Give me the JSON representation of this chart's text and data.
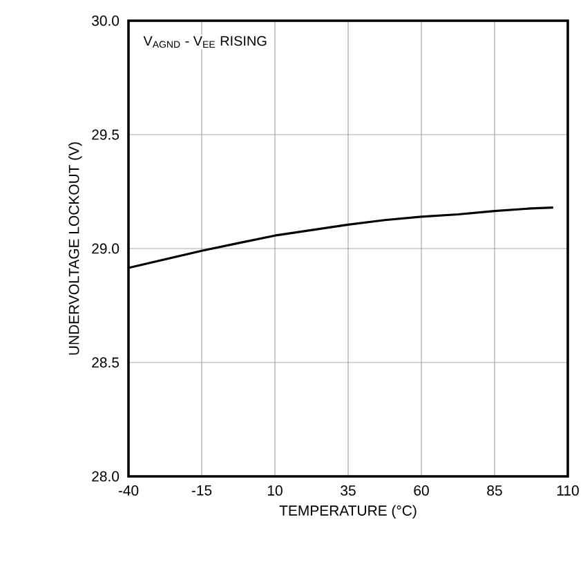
{
  "chart_data": {
    "type": "line",
    "xlabel": "TEMPERATURE (°C)",
    "ylabel": "UNDERVOLTAGE LOCKOUT (V)",
    "annotations": [
      "V$_{AGND}$ - V$_{EE}$ RISING"
    ],
    "x": [
      -40,
      -15,
      -2.5,
      10,
      22.5,
      35,
      47.5,
      60,
      72.5,
      85,
      97.5,
      105
    ],
    "series": [
      {
        "color": "#000000",
        "values": [
          28.915,
          28.99,
          29.024,
          29.057,
          29.081,
          29.105,
          29.125,
          29.14,
          29.15,
          29.165,
          29.176,
          29.18
        ]
      }
    ],
    "xlim": [
      -40,
      110
    ],
    "xticks": [
      -40,
      -15,
      10,
      35,
      60,
      85,
      110
    ],
    "ylim": [
      28.0,
      30.0
    ],
    "yticks": [
      {
        "value": 28.0,
        "label": "28.0"
      },
      {
        "value": 28.5,
        "label": "28.5"
      },
      {
        "value": 29.0,
        "label": "29.0"
      },
      {
        "value": 29.5,
        "label": "29.5"
      },
      {
        "value": 30.0,
        "label": "30.0"
      }
    ],
    "grid": true,
    "marker": "none",
    "line_style": "solid"
  }
}
